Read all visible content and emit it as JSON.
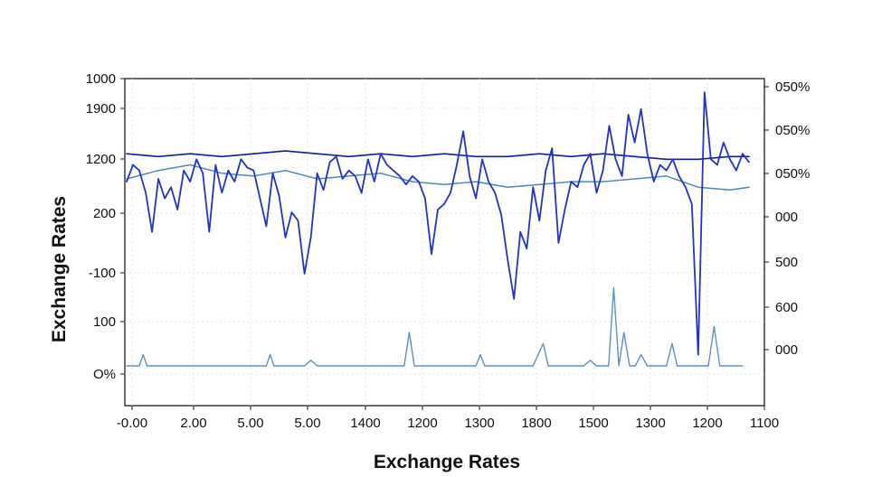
{
  "chart_data": {
    "type": "line",
    "title": "",
    "xlabel": "Exchange Rates",
    "ylabel": "Exchange Rates",
    "x_tick_labels": [
      "-0.00",
      "2.00",
      "5.00",
      "5.00",
      "1400",
      "1200",
      "1300",
      "1800",
      "1500",
      "1300",
      "1200",
      "1100"
    ],
    "y_left_tick_labels": [
      "1000",
      "1900",
      "1200",
      "200",
      "-100",
      "100",
      "O%"
    ],
    "y_right_tick_labels": [
      "050%",
      "050%",
      "050%",
      "000",
      "500",
      "600",
      "000"
    ],
    "xlim": [
      0,
      100
    ],
    "ylim": [
      0,
      100
    ],
    "grid": true,
    "legend": "none",
    "colors": {
      "volatile": "#1f35c8",
      "flat_dark": "#0f1f9a",
      "flat_light": "#4f89b8",
      "spikes": "#5a93c4"
    },
    "series": [
      {
        "style": "volatile",
        "x": [
          0,
          1,
          2,
          3,
          4,
          5,
          6,
          7,
          8,
          9,
          10,
          11,
          12,
          13,
          14,
          15,
          16,
          17,
          18,
          19,
          20,
          21,
          22,
          23,
          24,
          25,
          26,
          27,
          28,
          29,
          30,
          31,
          32,
          33,
          34,
          35,
          36,
          37,
          38,
          39,
          40,
          41,
          42,
          43,
          44,
          45,
          46,
          47,
          48,
          49,
          50,
          51,
          52,
          53,
          54,
          55,
          56,
          57,
          58,
          59,
          60,
          61,
          62,
          63,
          64,
          65,
          66,
          67,
          68,
          69,
          70,
          71,
          72,
          73,
          74,
          75,
          76,
          77,
          78,
          79,
          80,
          81,
          82,
          83,
          84,
          85,
          86,
          87,
          88,
          89,
          90,
          91,
          92,
          93,
          94,
          95,
          96,
          97,
          98
        ],
        "values": [
          66,
          72,
          70,
          62,
          48,
          67,
          60,
          64,
          56,
          70,
          66,
          74,
          69,
          48,
          72,
          62,
          70,
          66,
          74,
          71,
          70,
          60,
          50,
          69,
          61,
          46,
          55,
          52,
          33,
          46,
          69,
          63,
          73,
          75,
          67,
          70,
          68,
          62,
          74,
          66,
          76,
          72,
          70,
          68,
          65,
          68,
          66,
          60,
          40,
          56,
          58,
          62,
          72,
          84,
          68,
          60,
          74,
          66,
          62,
          54,
          38,
          24,
          48,
          42,
          64,
          52,
          70,
          78,
          44,
          56,
          66,
          64,
          72,
          76,
          62,
          70,
          86,
          74,
          68,
          90,
          80,
          92,
          76,
          66,
          72,
          70,
          74,
          68,
          64,
          58,
          4,
          98,
          74,
          72,
          80,
          74,
          70,
          76,
          73
        ]
      },
      {
        "style": "flat_dark",
        "x": [
          0,
          5,
          10,
          15,
          20,
          25,
          30,
          35,
          40,
          45,
          50,
          55,
          60,
          65,
          70,
          75,
          80,
          85,
          90,
          95,
          98
        ],
        "values": [
          76,
          75,
          76,
          75,
          76,
          77,
          76,
          75,
          76,
          75,
          76,
          75,
          75,
          76,
          75,
          76,
          75,
          74,
          74,
          75,
          75
        ]
      },
      {
        "style": "flat_light",
        "x": [
          0,
          5,
          10,
          15,
          20,
          25,
          30,
          35,
          40,
          45,
          50,
          55,
          60,
          65,
          70,
          75,
          80,
          85,
          90,
          95,
          98
        ],
        "values": [
          67,
          70,
          72,
          69,
          68,
          70,
          67,
          68,
          69,
          66,
          65,
          66,
          64,
          65,
          66,
          66,
          67,
          68,
          64,
          63,
          64
        ]
      },
      {
        "style": "spikes",
        "x": [
          0,
          2,
          2.6,
          3.2,
          5,
          8,
          10,
          11,
          15,
          18,
          20,
          22,
          22.6,
          23.2,
          25,
          28,
          29,
          30,
          31,
          33,
          36,
          40,
          42,
          43.7,
          44.5,
          45.3,
          48,
          52,
          54,
          55,
          55.7,
          56.4,
          58,
          60,
          62,
          64,
          65.6,
          66.4,
          67.2,
          70,
          72,
          73,
          74,
          75.9,
          76.7,
          77.5,
          78.3,
          79.2,
          80.1,
          81,
          82,
          84,
          85,
          85.9,
          86.7,
          87.5,
          88,
          90,
          91.6,
          92.5,
          93.4,
          94.3,
          95,
          96,
          97
        ],
        "values": [
          0,
          0,
          4,
          0,
          0,
          0,
          0,
          0,
          0,
          0,
          0,
          0,
          4,
          0,
          0,
          0,
          2,
          0,
          0,
          0,
          0,
          0,
          0,
          0,
          12,
          0,
          0,
          0,
          0,
          0,
          4,
          0,
          0,
          0,
          0,
          0,
          8,
          0,
          0,
          0,
          0,
          2,
          0,
          0,
          28,
          0,
          12,
          0,
          0,
          4,
          0,
          0,
          0,
          8,
          0,
          0,
          0,
          0,
          0,
          14,
          0,
          0,
          0,
          0,
          0
        ]
      }
    ]
  }
}
